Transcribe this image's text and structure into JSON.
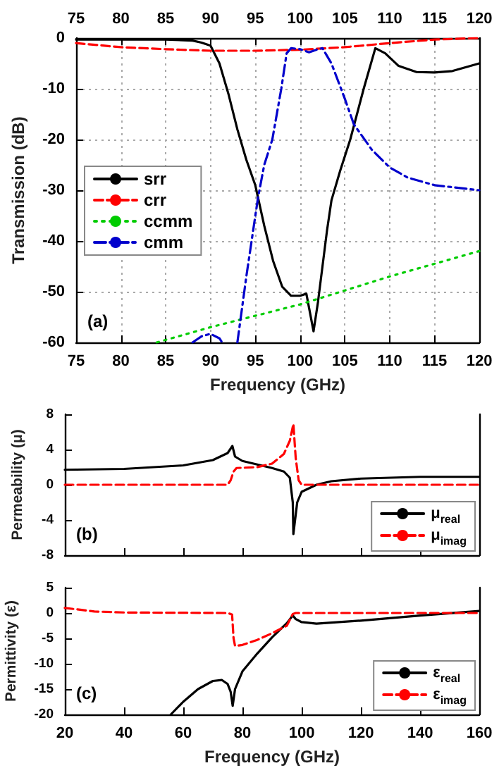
{
  "chart_data": [
    {
      "type": "line",
      "xlabel": "Frequency (GHz)",
      "ylabel": "Transmission (dB)",
      "xlim": [
        75,
        120
      ],
      "xticks": [
        75,
        80,
        85,
        90,
        95,
        100,
        105,
        110,
        115,
        120
      ],
      "x2lim": [
        75,
        120
      ],
      "x2ticks": [
        75,
        80,
        85,
        90,
        95,
        100,
        105,
        110,
        115,
        120
      ],
      "ylim": [
        -60,
        0
      ],
      "yticks": [
        -60,
        -50,
        -40,
        -30,
        -20,
        -10,
        0
      ],
      "grid": true,
      "legend": "left",
      "marker": "none",
      "annotations": [
        "(a)"
      ],
      "series": [
        {
          "name": "srr",
          "color": "#000000",
          "line_style": "solid",
          "x": [
            75,
            80,
            85,
            88,
            89,
            90,
            91,
            92,
            93,
            94,
            95,
            96,
            97,
            98,
            99,
            100,
            100.7,
            101.5,
            102,
            103,
            103.5,
            104.5,
            105.6,
            107.1,
            108.4,
            109.5,
            111,
            113,
            115,
            117,
            120
          ],
          "values": [
            -0.3,
            -0.3,
            -0.3,
            -0.5,
            -0.9,
            -1.5,
            -5,
            -11,
            -18,
            -24,
            -29,
            -37,
            -44,
            -49,
            -50.8,
            -50.8,
            -50.4,
            -57.8,
            -52,
            -38,
            -32,
            -26,
            -20,
            -10,
            -2,
            -3,
            -5.5,
            -6.7,
            -6.8,
            -6.5,
            -5
          ]
        },
        {
          "name": "crr",
          "color": "#ff0000",
          "line_style": "dashed",
          "x": [
            75,
            80,
            85,
            90,
            95,
            100,
            105,
            110,
            115,
            120
          ],
          "values": [
            -1,
            -1.8,
            -2.2,
            -2.5,
            -2.5,
            -2.3,
            -1.8,
            -1,
            -0.3,
            0
          ]
        },
        {
          "name": "ccmm",
          "color": "#00cc00",
          "line_style": "dotted",
          "x": [
            84,
            90,
            100,
            110,
            120
          ],
          "values": [
            -60,
            -57,
            -52.5,
            -47,
            -42
          ]
        },
        {
          "name": "cmm",
          "color": "#0000cc",
          "line_style": "dashdot",
          "x": [
            88,
            89,
            90,
            91,
            91.3,
            92,
            93,
            94,
            95.3,
            96,
            96.9,
            97.9,
            98.5,
            99,
            100,
            101,
            102,
            102.5,
            103.5,
            105,
            106,
            108,
            110,
            112,
            115,
            120
          ],
          "values": [
            -60,
            -58.8,
            -58.3,
            -59.2,
            -60,
            null,
            -60,
            -47,
            -31.5,
            -25,
            -20,
            -10,
            -3,
            -2,
            -2.2,
            -2.8,
            -2.2,
            -2,
            -5,
            -12,
            -17,
            -22,
            -25.5,
            -27.5,
            -29,
            -30
          ]
        }
      ]
    },
    {
      "type": "line",
      "ylabel": "Permeability (μ)",
      "xlim": [
        20,
        160
      ],
      "xticks": [
        20,
        40,
        60,
        80,
        100,
        120,
        140,
        160
      ],
      "ylim": [
        -8,
        8
      ],
      "yticks": [
        -8,
        -4,
        0,
        4,
        8
      ],
      "tick_labels": "y",
      "legend": "bottom right",
      "marker": "none",
      "annotations": [
        "(b)"
      ],
      "series": [
        {
          "name": "μ$_{real}$",
          "color": "#000000",
          "line_style": "solid",
          "x": [
            20,
            40,
            60,
            70,
            75,
            76.6,
            77.5,
            80,
            85,
            90,
            94,
            96,
            97,
            97.2,
            98.5,
            100,
            105,
            110,
            120,
            140,
            160
          ],
          "values": [
            1.7,
            1.8,
            2.2,
            2.8,
            3.6,
            4.4,
            3.2,
            2.7,
            2.3,
            1.9,
            1.5,
            0.8,
            -2,
            -5.6,
            -2,
            -0.8,
            0,
            0.4,
            0.7,
            0.9,
            0.9
          ]
        },
        {
          "name": "μ$_{imag}$",
          "color": "#ff0000",
          "line_style": "dashed",
          "x": [
            20,
            75,
            76,
            77,
            78,
            85,
            90,
            94,
            96,
            97.2,
            98,
            99,
            100,
            160
          ],
          "values": [
            0,
            0,
            0.5,
            1.5,
            1.9,
            2,
            2.4,
            3.5,
            5,
            6.9,
            3,
            0.5,
            0,
            0
          ]
        }
      ]
    },
    {
      "type": "line",
      "xlabel": "Frequency (GHz)",
      "ylabel": "Permittivity (ε)",
      "xlim": [
        20,
        160
      ],
      "xticks": [
        20,
        40,
        60,
        80,
        100,
        120,
        140,
        160
      ],
      "ylim": [
        -20,
        5
      ],
      "yticks": [
        -20,
        -15,
        -10,
        -5,
        0,
        5
      ],
      "legend": "bottom right",
      "marker": "none",
      "annotations": [
        "(c)"
      ],
      "series": [
        {
          "name": "ε$_{real}$",
          "color": "#000000",
          "line_style": "solid",
          "x": [
            55.8,
            60,
            65,
            70,
            73,
            75,
            76,
            76.7,
            77.5,
            80,
            85,
            90,
            95,
            97,
            98,
            100,
            105,
            120,
            140,
            160
          ],
          "values": [
            -20,
            -17.5,
            -15,
            -13.4,
            -13.2,
            -14,
            -15.5,
            -18.3,
            -15,
            -11.5,
            -8,
            -4.8,
            -2,
            -0.5,
            -1.2,
            -1.8,
            -2.1,
            -1.5,
            -0.5,
            0.4
          ]
        },
        {
          "name": "ε$_{imag}$",
          "color": "#ff0000",
          "line_style": "dashed",
          "x": [
            20,
            30,
            40,
            75,
            76.5,
            77,
            77.5,
            80,
            85,
            90,
            95,
            97,
            98,
            160
          ],
          "values": [
            1,
            0.3,
            0.1,
            0,
            -0.3,
            -5,
            -6.5,
            -6.3,
            -5.3,
            -4,
            -2.5,
            -0.2,
            0,
            0
          ]
        }
      ]
    }
  ]
}
